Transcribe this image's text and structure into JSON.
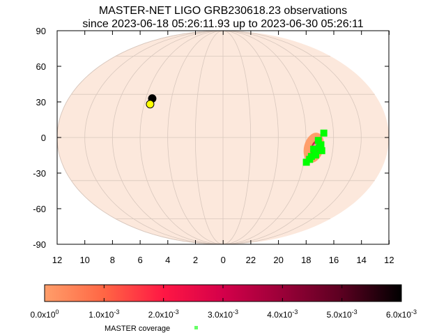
{
  "chart_data": {
    "type": "scatter",
    "title": "MASTER-NET LIGO GRB230618.23 observations",
    "subtitle": "since 2023-06-18 05:26:11.93 up to 2023-06-30 05:26:11",
    "projection": "mollweide",
    "x_ticks": [
      "12",
      "10",
      "8",
      "6",
      "4",
      "2",
      "0",
      "22",
      "20",
      "18",
      "16",
      "14",
      "12"
    ],
    "y_ticks": [
      "90",
      "60",
      "30",
      "0",
      "-30",
      "-60",
      "-90"
    ],
    "ylim": [
      -90,
      90
    ],
    "grid": true,
    "background_color": "#fce8dc",
    "points": [
      {
        "ra_h": 5.5,
        "dec": 27,
        "color": "#000000"
      },
      {
        "ra_h": 5.55,
        "dec": 23,
        "color": "#ffff00"
      }
    ],
    "localization": {
      "ra_h": 17.4,
      "dec": -7,
      "color_outer": "#ff9e6a",
      "color_inner": "#c4003c"
    },
    "coverage": {
      "color": "#00ff00",
      "label": "MASTER coverage",
      "fields": [
        {
          "ra_h": 17.1,
          "dec": -2
        },
        {
          "ra_h": 16.9,
          "dec": -5
        },
        {
          "ra_h": 16.8,
          "dec": -9
        },
        {
          "ra_h": 17.2,
          "dec": -12
        },
        {
          "ra_h": 17.6,
          "dec": -15
        },
        {
          "ra_h": 17.8,
          "dec": -17
        },
        {
          "ra_h": 16.7,
          "dec": 3
        },
        {
          "ra_h": 17.4,
          "dec": -8
        },
        {
          "ra_h": 17.0,
          "dec": -7
        },
        {
          "ra_h": 17.5,
          "dec": -13
        }
      ]
    },
    "colorbar": {
      "min": 0,
      "max": 0.006,
      "colors": [
        "#ff9e6a",
        "#ff6644",
        "#ff1744",
        "#d4004a",
        "#9a0038",
        "#5a0020",
        "#000000"
      ],
      "labels": [
        {
          "base": "0.0x10",
          "exp": "0"
        },
        {
          "base": "1.0x10",
          "exp": "-3"
        },
        {
          "base": "2.0x10",
          "exp": "-3"
        },
        {
          "base": "3.0x10",
          "exp": "-3"
        },
        {
          "base": "4.0x10",
          "exp": "-3"
        },
        {
          "base": "5.0x10",
          "exp": "-3"
        },
        {
          "base": "6.0x10",
          "exp": "-3"
        }
      ]
    }
  }
}
